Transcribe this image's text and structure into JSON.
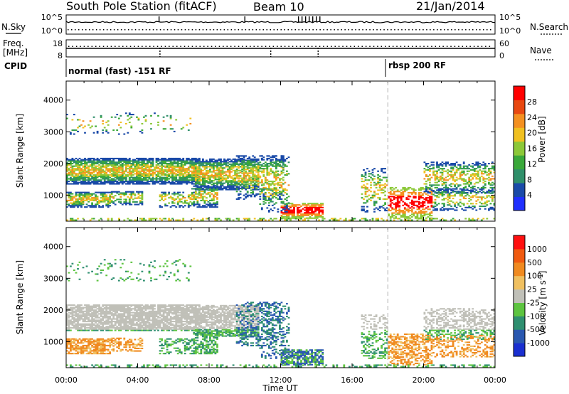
{
  "header": {
    "title": "South Pole Station (fitACF)",
    "beam": "Beam 10",
    "date": "21/Jan/2014"
  },
  "nsky_panel": {
    "left_label": "N.Sky",
    "right_label": "N.Search",
    "left_ticks": [
      "10^5",
      "10^0"
    ],
    "right_ticks": [
      "10^5",
      "10^0"
    ]
  },
  "freq_panel": {
    "left_label_1": "Freq.",
    "left_label_2": "[MHz]",
    "right_label": "Nave",
    "left_ticks": [
      "18",
      "8"
    ],
    "right_ticks": [
      "60",
      "0"
    ]
  },
  "cpid": {
    "label": "CPID",
    "mode_1": "normal (fast) -151 RF",
    "mode_2": "rbsp 200 RF",
    "switch_time_hours": 18.0
  },
  "chart_data": [
    {
      "type": "heatmap",
      "name": "power",
      "ylabel": "Slant Range [km]",
      "xlabel": "",
      "ylim": [
        180,
        4600
      ],
      "yticks": [
        1000,
        2000,
        3000,
        4000
      ],
      "xlim_hours": [
        0,
        24
      ],
      "colorbar": {
        "label": "Power [dB]",
        "range": [
          0,
          32
        ],
        "tick_values": [
          4,
          8,
          12,
          16,
          20,
          24,
          28
        ],
        "tick_labels": [
          "4",
          "8",
          "12",
          "16",
          "20",
          "24",
          "28"
        ],
        "colors": [
          "#2030ff",
          "#1a4aa8",
          "#2f8f6a",
          "#3aa83a",
          "#8cc838",
          "#f0c020",
          "#f49020",
          "#e84810",
          "#ff0000"
        ]
      }
    },
    {
      "type": "heatmap",
      "name": "velocity",
      "ylabel": "Slant Range [km]",
      "xlabel": "Time UT",
      "ylim": [
        180,
        4600
      ],
      "yticks": [
        1000,
        2000,
        3000,
        4000
      ],
      "xlim_hours": [
        0,
        24
      ],
      "xtick_labels": [
        "00:00",
        "04:00",
        "08:00",
        "12:00",
        "16:00",
        "20:00",
        "00:00"
      ],
      "colorbar": {
        "label": "Velocity [m s",
        "label_sup": "-1",
        "label_end": "]",
        "tick_labels": [
          "1000",
          "500",
          "100",
          "25",
          "-25",
          "-100",
          "-500",
          "-1000"
        ],
        "colors": [
          "#1a2fd0",
          "#2a58b0",
          "#2f8f70",
          "#5dc440",
          "#c0c0b8",
          "#f0c060",
          "#f08a20",
          "#f05a10",
          "#ff1010"
        ]
      }
    }
  ]
}
